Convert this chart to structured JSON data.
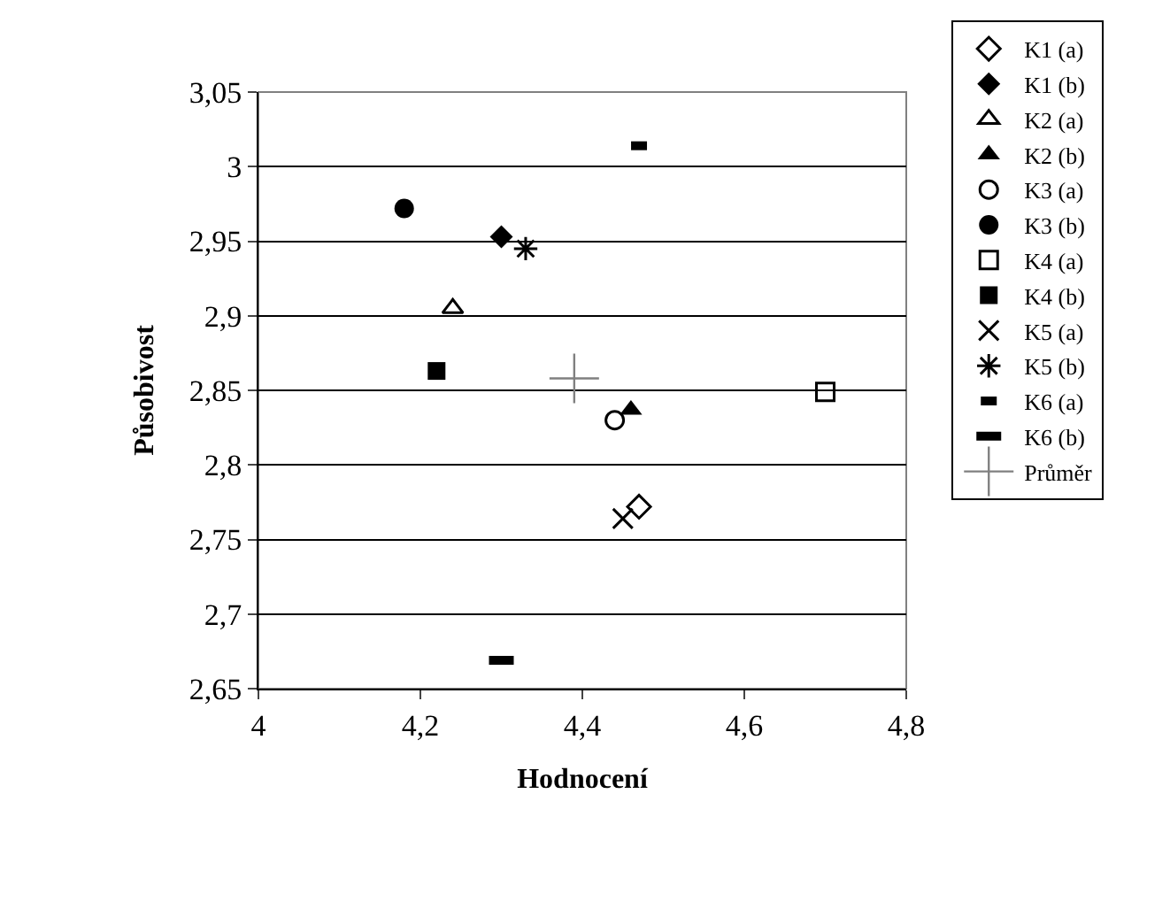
{
  "chart_data": {
    "type": "scatter",
    "xlabel": "Hodnocení",
    "ylabel": "Působivost",
    "xlim": [
      4,
      4.8
    ],
    "xticks": [
      4,
      {
        "value": 4.2,
        "label": "4,2"
      },
      {
        "value": 4.4,
        "label": "4,4"
      },
      {
        "value": 4.6,
        "label": "4,6"
      },
      {
        "value": 4.8,
        "label": "4,8"
      }
    ],
    "ylim": [
      2.65,
      3.05
    ],
    "yticks": [
      {
        "value": 2.65,
        "label": "2,65"
      },
      {
        "value": 2.7,
        "label": "2,7"
      },
      {
        "value": 2.75,
        "label": "2,75"
      },
      {
        "value": 2.8,
        "label": "2,8"
      },
      {
        "value": 2.85,
        "label": "2,85"
      },
      {
        "value": 2.9,
        "label": "2,9"
      },
      {
        "value": 2.95,
        "label": "2,95"
      },
      3,
      {
        "value": 3.05,
        "label": "3,05"
      }
    ],
    "grid": "y",
    "legend": "right",
    "series": [
      {
        "name": "K1 (a)",
        "color": "#000000",
        "marker": "diamond-open",
        "x": [
          4.47
        ],
        "values": [
          2.772
        ]
      },
      {
        "name": "K1 (b)",
        "color": "#000000",
        "marker": "diamond",
        "x": [
          4.3
        ],
        "values": [
          2.953
        ]
      },
      {
        "name": "K2 (a)",
        "color": "#000000",
        "marker": "triangle-up-open",
        "x": [
          4.24
        ],
        "values": [
          2.905
        ]
      },
      {
        "name": "K2 (b)",
        "color": "#000000",
        "marker": "triangle-up",
        "x": [
          4.46
        ],
        "values": [
          2.837
        ]
      },
      {
        "name": "K3 (a)",
        "color": "#000000",
        "marker": "circle-open",
        "x": [
          4.44
        ],
        "values": [
          2.83
        ]
      },
      {
        "name": "K3 (b)",
        "color": "#000000",
        "marker": "circle",
        "x": [
          4.18
        ],
        "values": [
          2.972
        ]
      },
      {
        "name": "K4 (a)",
        "color": "#000000",
        "marker": "square-open",
        "x": [
          4.7
        ],
        "values": [
          2.849
        ]
      },
      {
        "name": "K4 (b)",
        "color": "#000000",
        "marker": "square",
        "x": [
          4.22
        ],
        "values": [
          2.863
        ]
      },
      {
        "name": "K5 (a)",
        "color": "#000000",
        "marker": "cross-open",
        "x": [
          4.45
        ],
        "values": [
          2.764
        ]
      },
      {
        "name": "K5 (b)",
        "color": "#000000",
        "x": [
          4.33
        ],
        "values": [
          2.945
        ]
      },
      {
        "name": "K6 (a)",
        "color": "#000000",
        "marker": "square",
        "x": [
          4.47
        ],
        "values": [
          3.014
        ]
      },
      {
        "name": "K6 (b)",
        "color": "#000000",
        "marker": "square",
        "x": [
          4.3
        ],
        "values": [
          2.669
        ]
      },
      {
        "name": "Průměr",
        "color": "#808080",
        "marker": "cross",
        "x": [
          4.39
        ],
        "values": [
          2.858
        ]
      }
    ]
  }
}
